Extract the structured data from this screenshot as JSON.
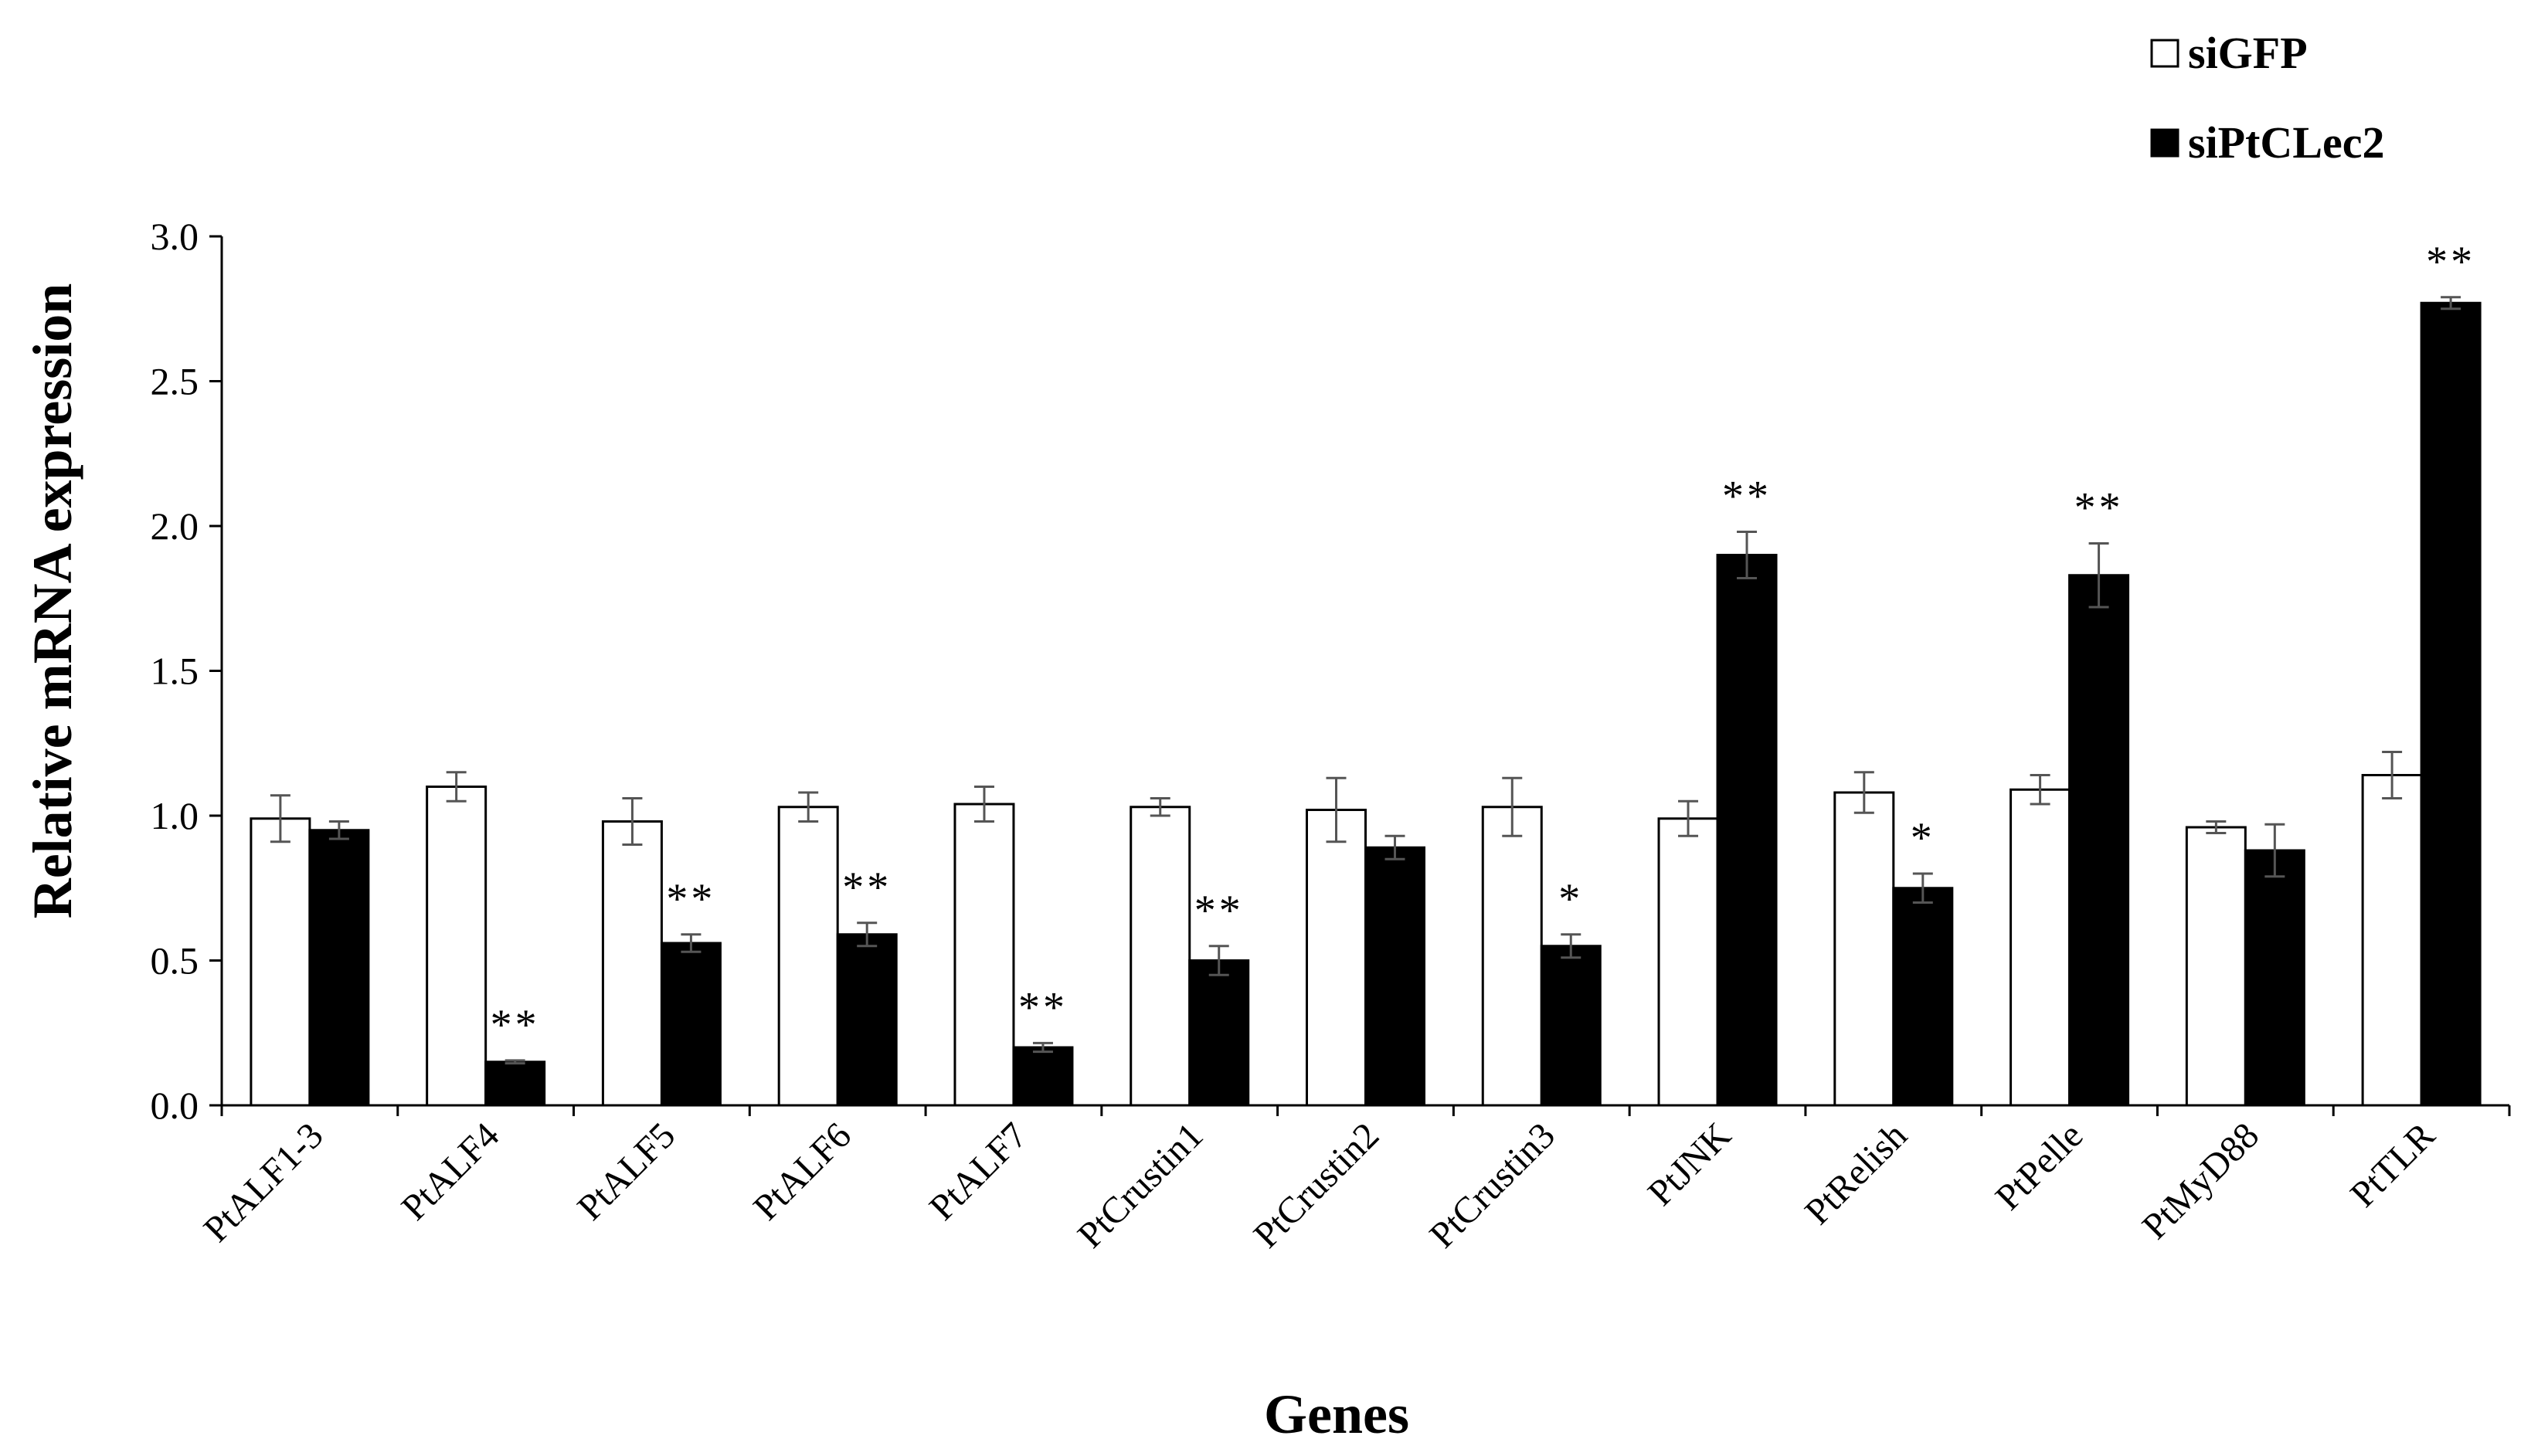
{
  "chart_data": {
    "type": "bar",
    "title": "",
    "xlabel": "Genes",
    "ylabel": "Relative mRNA expression",
    "ylim": [
      0,
      3.0
    ],
    "yticks": [
      "0.0",
      "0.5",
      "1.0",
      "1.5",
      "2.0",
      "2.5",
      "3.0"
    ],
    "ytick_values": [
      0,
      0.5,
      1.0,
      1.5,
      2.0,
      2.5,
      3.0
    ],
    "legend_position": "top-right",
    "categories": [
      "PtALF1-3",
      "PtALF4",
      "PtALF5",
      "PtALF6",
      "PtALF7",
      "PtCrustin1",
      "PtCrustin2",
      "PtCrustin3",
      "PtJNK",
      "PtRelish",
      "PtPelle",
      "PtMyD88",
      "PtTLR"
    ],
    "series": [
      {
        "name": "siGFP",
        "color": "#ffffff",
        "values": [
          0.99,
          1.1,
          0.98,
          1.03,
          1.04,
          1.03,
          1.02,
          1.03,
          0.99,
          1.08,
          1.09,
          0.96,
          1.14
        ],
        "errors": [
          0.08,
          0.05,
          0.08,
          0.05,
          0.06,
          0.03,
          0.11,
          0.1,
          0.06,
          0.07,
          0.05,
          0.02,
          0.08
        ],
        "significance": [
          "",
          "",
          "",
          "",
          "",
          "",
          "",
          "",
          "",
          "",
          "",
          "",
          ""
        ]
      },
      {
        "name": "siPtCLec2",
        "color": "#000000",
        "values": [
          0.95,
          0.15,
          0.56,
          0.59,
          0.2,
          0.5,
          0.89,
          0.55,
          1.9,
          0.75,
          1.83,
          0.88,
          2.77
        ],
        "errors": [
          0.03,
          0.005,
          0.03,
          0.04,
          0.015,
          0.05,
          0.04,
          0.04,
          0.08,
          0.05,
          0.11,
          0.09,
          0.02
        ],
        "significance": [
          "",
          "**",
          "**",
          "**",
          "**",
          "**",
          "",
          "*",
          "**",
          "*",
          "**",
          "",
          "**"
        ]
      }
    ]
  }
}
